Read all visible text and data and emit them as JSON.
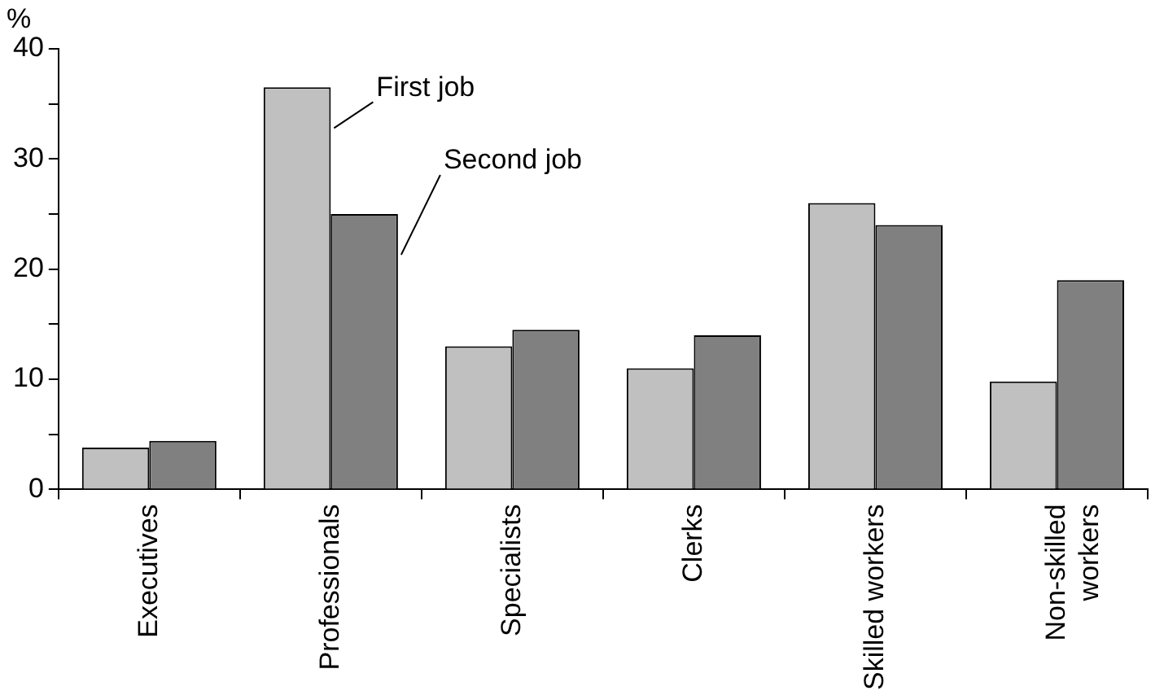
{
  "chart_data": {
    "type": "bar",
    "ylabel": "%",
    "categories": [
      "Executives",
      "Professionals",
      "Specialists",
      "Clerks",
      "Skilled workers",
      "Non-skilled workers"
    ],
    "series": [
      {
        "name": "First job",
        "color": "#c0c0c0",
        "values": [
          3.8,
          36.5,
          13,
          11,
          26,
          9.8
        ]
      },
      {
        "name": "Second job",
        "color": "#808080",
        "values": [
          4.4,
          25,
          14.5,
          14,
          24,
          19
        ]
      }
    ],
    "ylim": [
      0,
      40
    ],
    "yticks": [
      0,
      {
        "value": 5,
        "label": null
      },
      10,
      {
        "value": 15,
        "label": null
      },
      20,
      {
        "value": 25,
        "label": null
      },
      30,
      {
        "value": 35,
        "label": null
      },
      40
    ],
    "grid": false,
    "legend": false
  }
}
